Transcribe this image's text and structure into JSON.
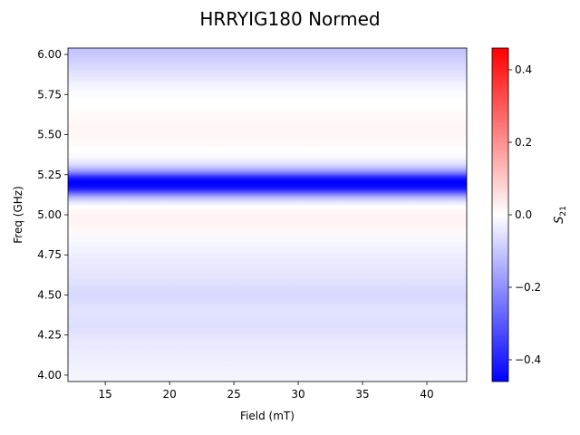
{
  "chart_data": {
    "type": "heatmap",
    "title": "HRRYIG180 Normed",
    "xlabel": "Field (mT)",
    "ylabel": "Freq (GHz)",
    "xlim": [
      12.1,
      43.1
    ],
    "ylim": [
      3.96,
      6.04
    ],
    "xticks": [
      15,
      20,
      25,
      30,
      35,
      40
    ],
    "yticks": [
      4.0,
      4.25,
      4.5,
      4.75,
      5.0,
      5.25,
      5.5,
      5.75,
      6.0
    ],
    "colorbar": {
      "label": "S21",
      "label_main": "S",
      "label_sub": "21",
      "range": [
        -0.46,
        0.46
      ],
      "ticks": [
        0.4,
        0.2,
        0.0,
        -0.2,
        -0.4
      ],
      "colormap": "bwr"
    },
    "freq_profile": {
      "freq_ghz": [
        4.0,
        4.1,
        4.2,
        4.3,
        4.4,
        4.5,
        4.6,
        4.7,
        4.8,
        4.85,
        4.9,
        4.95,
        5.0,
        5.05,
        5.08,
        5.11,
        5.14,
        5.16,
        5.18,
        5.2,
        5.22,
        5.24,
        5.26,
        5.29,
        5.32,
        5.36,
        5.4,
        5.45,
        5.5,
        5.55,
        5.6,
        5.65,
        5.7,
        5.75,
        5.8,
        5.85,
        5.9,
        5.95,
        6.0,
        6.04
      ],
      "s21": [
        -0.02,
        -0.03,
        -0.04,
        -0.06,
        -0.05,
        -0.07,
        -0.05,
        -0.04,
        -0.02,
        -0.01,
        0.01,
        0.02,
        0.02,
        0.0,
        -0.05,
        -0.14,
        -0.3,
        -0.4,
        -0.45,
        -0.46,
        -0.44,
        -0.36,
        -0.24,
        -0.12,
        -0.05,
        -0.01,
        0.0,
        0.01,
        0.015,
        0.015,
        0.01,
        0.005,
        0.0,
        -0.005,
        -0.02,
        -0.04,
        -0.06,
        -0.08,
        -0.1,
        -0.11
      ]
    }
  }
}
